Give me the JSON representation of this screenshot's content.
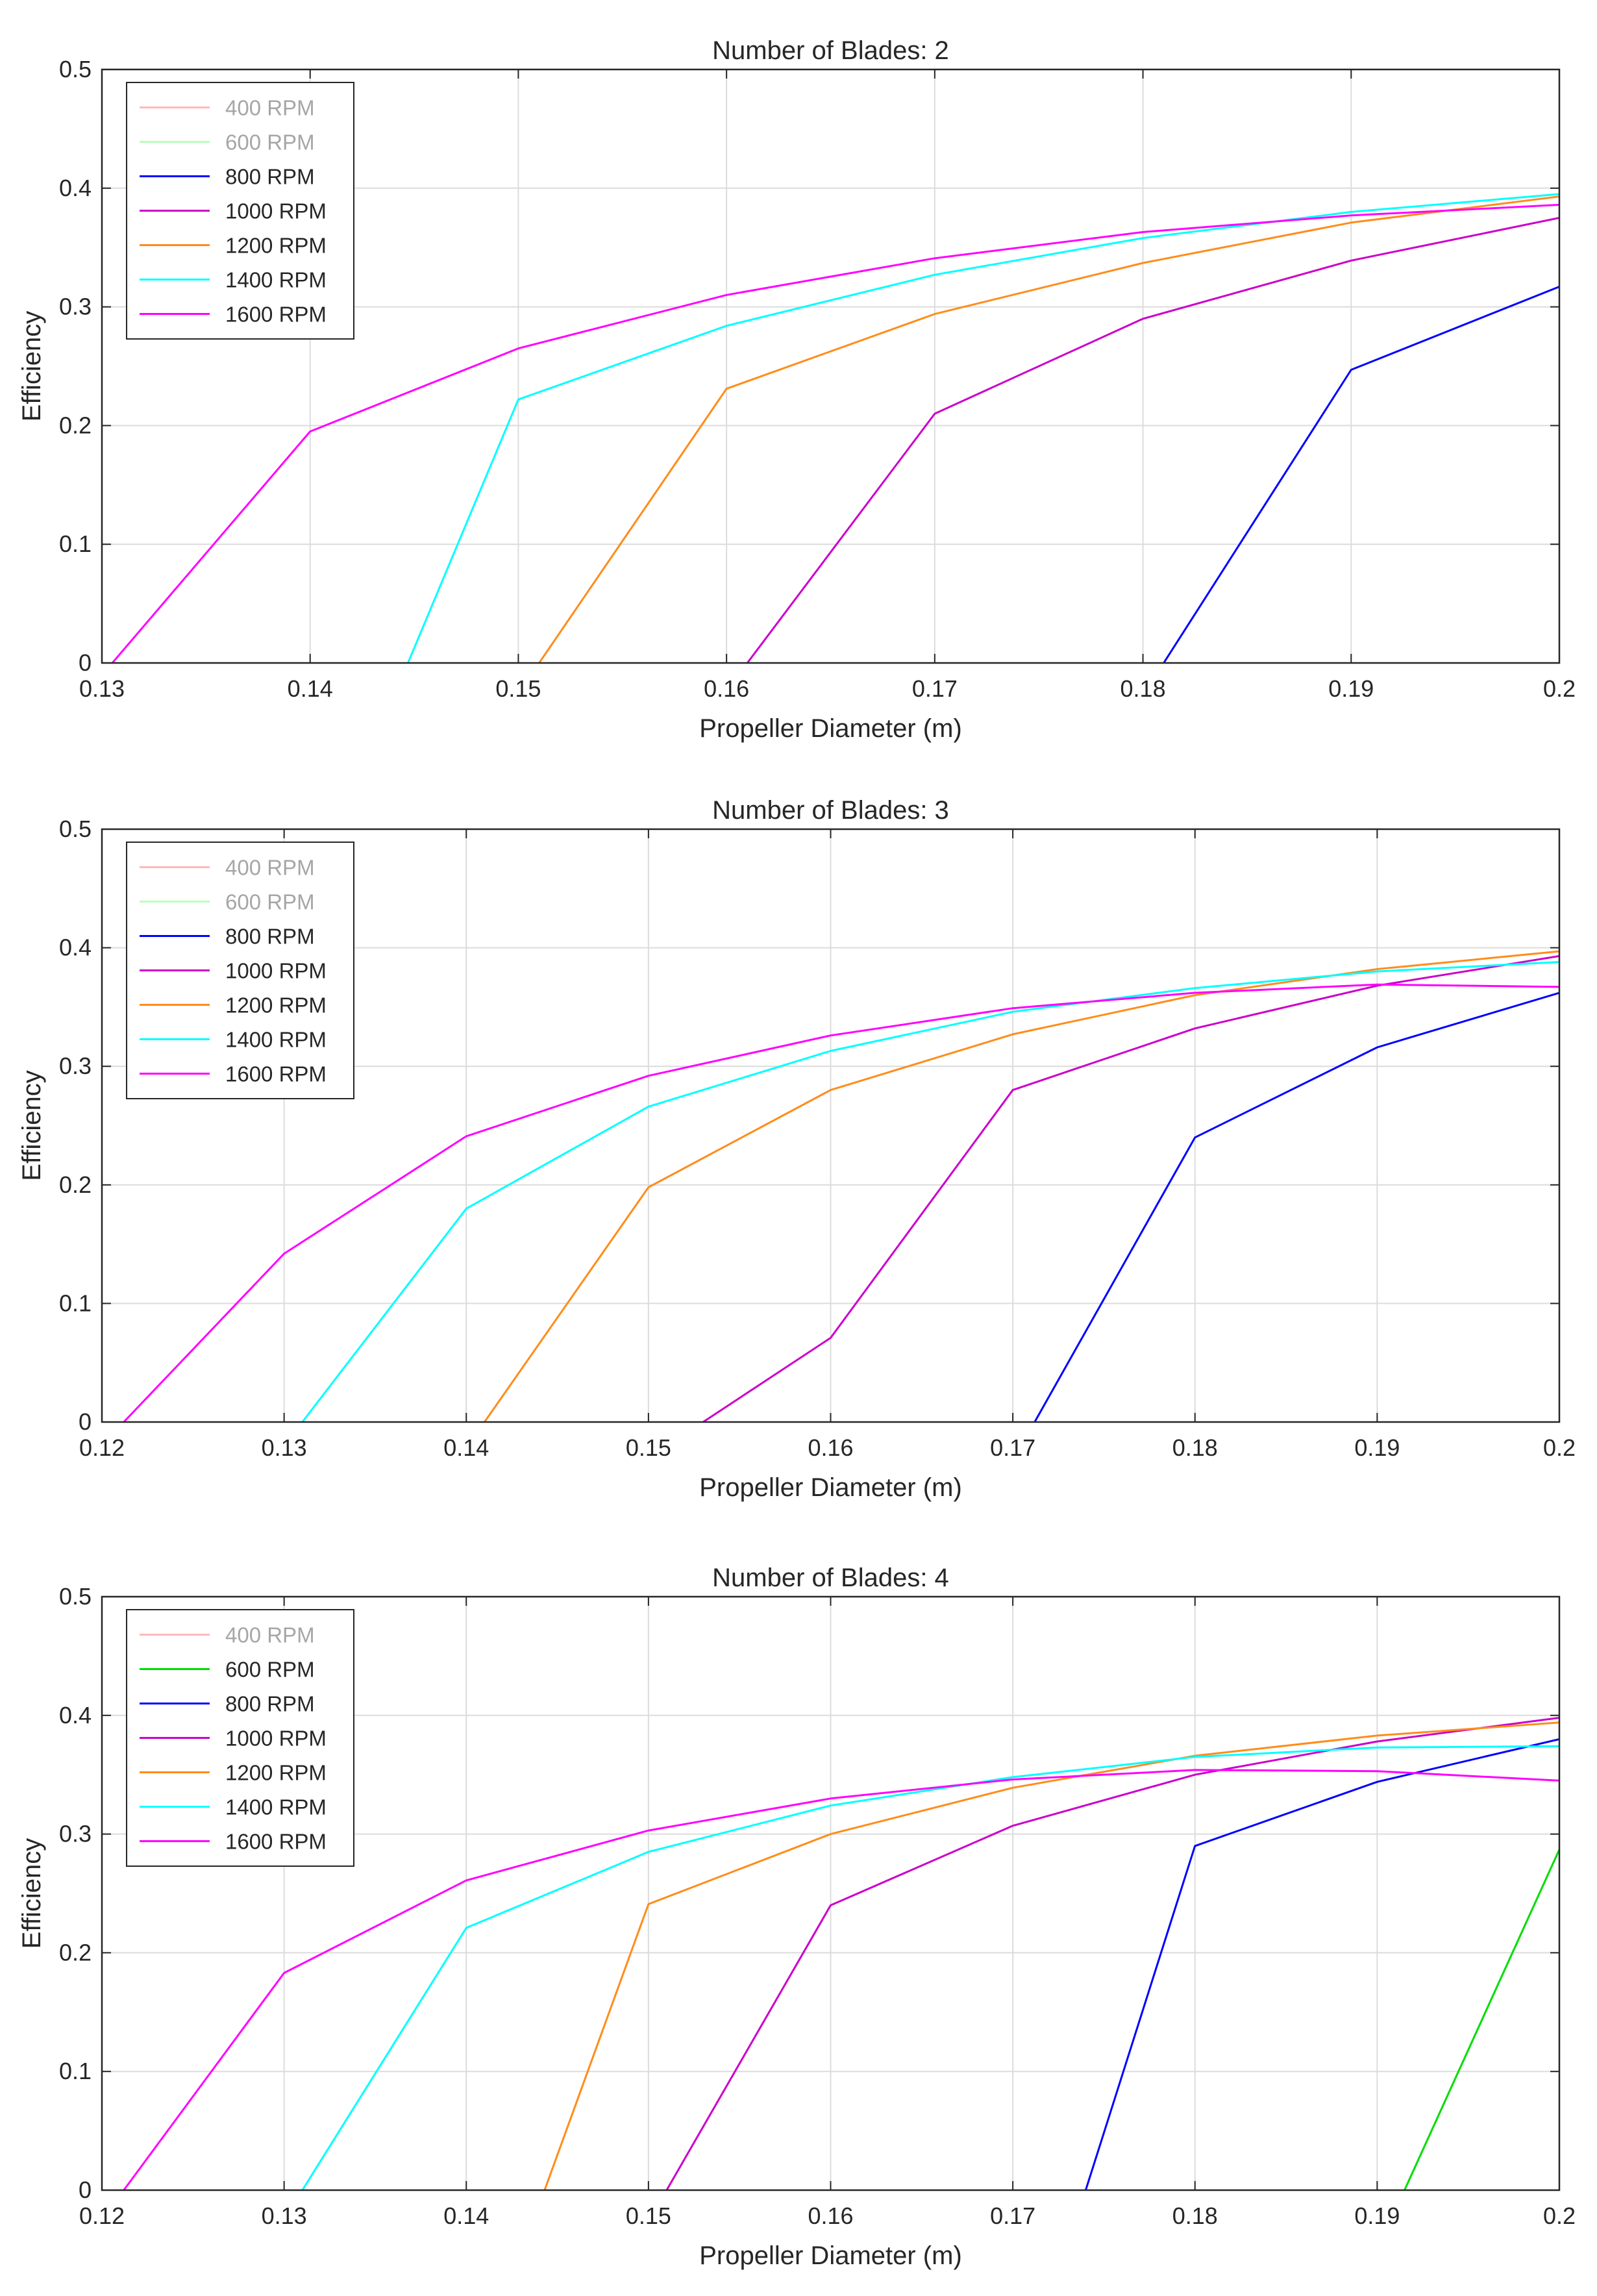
{
  "chart_data": [
    {
      "type": "line",
      "title": "Number of Blades: 2",
      "xlabel": "Propeller Diameter (m)",
      "ylabel": "Efficiency",
      "xlim": [
        0.13,
        0.2
      ],
      "ylim": [
        0,
        0.5
      ],
      "xticks": [
        0.13,
        0.14,
        0.15,
        0.16,
        0.17,
        0.18,
        0.19,
        0.2
      ],
      "xtick_labels": [
        "0.13",
        "0.14",
        "0.15",
        "0.16",
        "0.17",
        "0.18",
        "0.19",
        "0.2"
      ],
      "yticks": [
        0,
        0.1,
        0.2,
        0.3,
        0.4,
        0.5
      ],
      "ytick_labels": [
        "0",
        "0.1",
        "0.2",
        "0.3",
        "0.4",
        "0.5"
      ],
      "grid": true,
      "legend_position": "top-left",
      "series": [
        {
          "name": "400 RPM",
          "color": "#ff8080",
          "dim": true,
          "x": [],
          "y": []
        },
        {
          "name": "600 RPM",
          "color": "#80ff80",
          "dim": true,
          "x": [],
          "y": []
        },
        {
          "name": "800 RPM",
          "color": "#0000ff",
          "dim": false,
          "x": [
            0.181,
            0.19,
            0.2
          ],
          "y": [
            0,
            0.247,
            0.317
          ]
        },
        {
          "name": "1000 RPM",
          "color": "#cc00cc",
          "dim": false,
          "x": [
            0.161,
            0.17,
            0.18,
            0.19,
            0.2
          ],
          "y": [
            0,
            0.21,
            0.29,
            0.339,
            0.375
          ]
        },
        {
          "name": "1200 RPM",
          "color": "#ff8c1a",
          "dim": false,
          "x": [
            0.151,
            0.16,
            0.17,
            0.18,
            0.19,
            0.2
          ],
          "y": [
            0,
            0.231,
            0.294,
            0.337,
            0.371,
            0.393
          ]
        },
        {
          "name": "1400 RPM",
          "color": "#00ffff",
          "dim": false,
          "x": [
            0.1447,
            0.15,
            0.16,
            0.17,
            0.18,
            0.19,
            0.2
          ],
          "y": [
            0,
            0.222,
            0.284,
            0.327,
            0.358,
            0.38,
            0.395
          ]
        },
        {
          "name": "1600 RPM",
          "color": "#ff00ff",
          "dim": false,
          "x": [
            0.1305,
            0.14,
            0.15,
            0.16,
            0.17,
            0.18,
            0.19,
            0.2
          ],
          "y": [
            0,
            0.195,
            0.265,
            0.31,
            0.341,
            0.363,
            0.377,
            0.386
          ]
        }
      ]
    },
    {
      "type": "line",
      "title": "Number of Blades: 3",
      "xlabel": "Propeller Diameter (m)",
      "ylabel": "Efficiency",
      "xlim": [
        0.12,
        0.2
      ],
      "ylim": [
        0,
        0.5
      ],
      "xticks": [
        0.12,
        0.13,
        0.14,
        0.15,
        0.16,
        0.17,
        0.18,
        0.19,
        0.2
      ],
      "xtick_labels": [
        "0.12",
        "0.13",
        "0.14",
        "0.15",
        "0.16",
        "0.17",
        "0.18",
        "0.19",
        "0.2"
      ],
      "yticks": [
        0,
        0.1,
        0.2,
        0.3,
        0.4,
        0.5
      ],
      "ytick_labels": [
        "0",
        "0.1",
        "0.2",
        "0.3",
        "0.4",
        "0.5"
      ],
      "grid": true,
      "legend_position": "top-left",
      "series": [
        {
          "name": "400 RPM",
          "color": "#ff8080",
          "dim": true,
          "x": [],
          "y": []
        },
        {
          "name": "600 RPM",
          "color": "#80ff80",
          "dim": true,
          "x": [],
          "y": []
        },
        {
          "name": "800 RPM",
          "color": "#0000ff",
          "dim": false,
          "x": [
            0.1712,
            0.18,
            0.19,
            0.2
          ],
          "y": [
            0,
            0.24,
            0.316,
            0.362
          ]
        },
        {
          "name": "1000 RPM",
          "color": "#cc00cc",
          "dim": false,
          "x": [
            0.153,
            0.16,
            0.17,
            0.18,
            0.19,
            0.2
          ],
          "y": [
            0,
            0.071,
            0.28,
            0.332,
            0.368,
            0.393
          ]
        },
        {
          "name": "1200 RPM",
          "color": "#ff8c1a",
          "dim": false,
          "x": [
            0.141,
            0.15,
            0.16,
            0.17,
            0.18,
            0.19,
            0.2
          ],
          "y": [
            0,
            0.198,
            0.28,
            0.327,
            0.36,
            0.382,
            0.397
          ]
        },
        {
          "name": "1400 RPM",
          "color": "#00ffff",
          "dim": false,
          "x": [
            0.131,
            0.14,
            0.15,
            0.16,
            0.17,
            0.18,
            0.19,
            0.2
          ],
          "y": [
            0,
            0.18,
            0.266,
            0.313,
            0.346,
            0.366,
            0.38,
            0.388
          ]
        },
        {
          "name": "1600 RPM",
          "color": "#ff00ff",
          "dim": false,
          "x": [
            0.1212,
            0.13,
            0.14,
            0.15,
            0.16,
            0.17,
            0.18,
            0.19,
            0.2
          ],
          "y": [
            0,
            0.142,
            0.241,
            0.292,
            0.326,
            0.349,
            0.362,
            0.369,
            0.367
          ]
        }
      ]
    },
    {
      "type": "line",
      "title": "Number of Blades: 4",
      "xlabel": "Propeller Diameter (m)",
      "ylabel": "Efficiency",
      "xlim": [
        0.12,
        0.2
      ],
      "ylim": [
        0,
        0.5
      ],
      "xticks": [
        0.12,
        0.13,
        0.14,
        0.15,
        0.16,
        0.17,
        0.18,
        0.19,
        0.2
      ],
      "xtick_labels": [
        "0.12",
        "0.13",
        "0.14",
        "0.15",
        "0.16",
        "0.17",
        "0.18",
        "0.19",
        "0.2"
      ],
      "yticks": [
        0,
        0.1,
        0.2,
        0.3,
        0.4,
        0.5
      ],
      "ytick_labels": [
        "0",
        "0.1",
        "0.2",
        "0.3",
        "0.4",
        "0.5"
      ],
      "grid": true,
      "legend_position": "top-left",
      "series": [
        {
          "name": "400 RPM",
          "color": "#ff8080",
          "dim": true,
          "x": [],
          "y": []
        },
        {
          "name": "600 RPM",
          "color": "#00dd00",
          "dim": false,
          "x": [
            0.1915,
            0.2
          ],
          "y": [
            0,
            0.287
          ]
        },
        {
          "name": "800 RPM",
          "color": "#0000ff",
          "dim": false,
          "x": [
            0.174,
            0.18,
            0.19,
            0.2
          ],
          "y": [
            0,
            0.29,
            0.344,
            0.38
          ]
        },
        {
          "name": "1000 RPM",
          "color": "#cc00cc",
          "dim": false,
          "x": [
            0.151,
            0.16,
            0.17,
            0.18,
            0.19,
            0.2
          ],
          "y": [
            0,
            0.24,
            0.307,
            0.35,
            0.378,
            0.398
          ]
        },
        {
          "name": "1200 RPM",
          "color": "#ff8c1a",
          "dim": false,
          "x": [
            0.1443,
            0.15,
            0.16,
            0.17,
            0.18,
            0.19,
            0.2
          ],
          "y": [
            0,
            0.241,
            0.3,
            0.339,
            0.366,
            0.383,
            0.394
          ]
        },
        {
          "name": "1400 RPM",
          "color": "#00ffff",
          "dim": false,
          "x": [
            0.131,
            0.14,
            0.15,
            0.16,
            0.17,
            0.18,
            0.19,
            0.2
          ],
          "y": [
            0,
            0.221,
            0.285,
            0.324,
            0.348,
            0.365,
            0.373,
            0.374
          ]
        },
        {
          "name": "1600 RPM",
          "color": "#ff00ff",
          "dim": false,
          "x": [
            0.1212,
            0.13,
            0.14,
            0.15,
            0.16,
            0.17,
            0.18,
            0.19,
            0.2
          ],
          "y": [
            0,
            0.183,
            0.261,
            0.303,
            0.33,
            0.346,
            0.354,
            0.353,
            0.345
          ]
        }
      ]
    }
  ]
}
